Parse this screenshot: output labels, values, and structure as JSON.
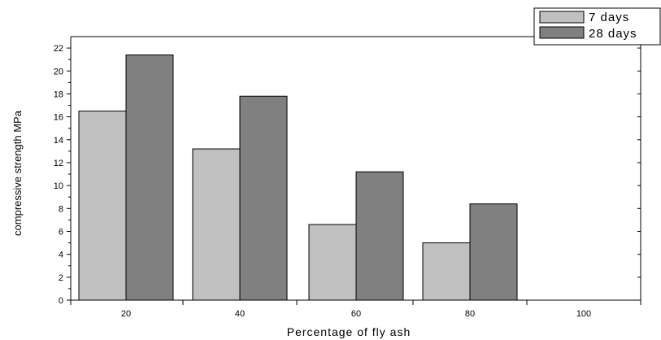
{
  "chart_data": {
    "type": "bar",
    "categories": [
      "20",
      "40",
      "60",
      "80",
      "100"
    ],
    "series": [
      {
        "name": "7 days",
        "values": [
          16.5,
          13.2,
          6.6,
          5.0,
          0
        ],
        "color": "#c0c0c0"
      },
      {
        "name": "28 days",
        "values": [
          21.4,
          17.8,
          11.2,
          8.4,
          0
        ],
        "color": "#808080"
      }
    ],
    "xlabel": "Percentage of fly ash",
    "ylabel": "compressive strength MPa",
    "ylim": [
      0,
      23
    ],
    "yticks": [
      "0",
      "2",
      "4",
      "6",
      "8",
      "10",
      "12",
      "14",
      "16",
      "18",
      "20",
      "22"
    ],
    "grid": false,
    "legend_position": "top-right"
  }
}
